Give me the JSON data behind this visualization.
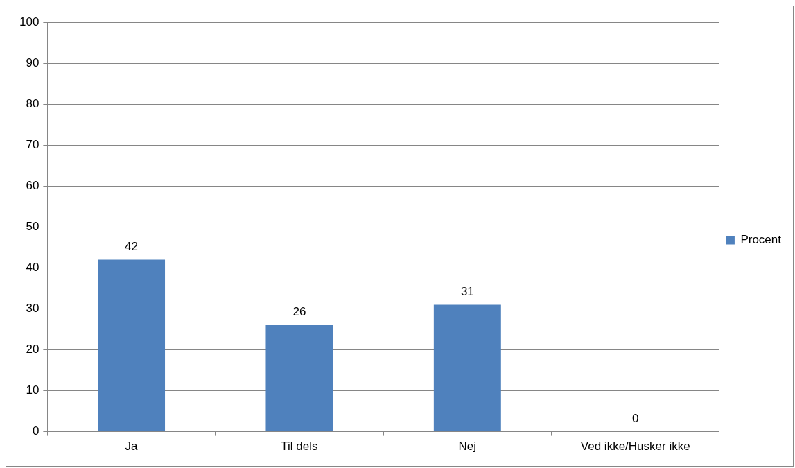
{
  "chart_data": {
    "type": "bar",
    "categories": [
      "Ja",
      "Til dels",
      "Nej",
      "Ved ikke/Husker ikke"
    ],
    "series": [
      {
        "name": "Procent",
        "color": "#4f81bd",
        "values": [
          42,
          26,
          31,
          0
        ]
      }
    ],
    "ylim": [
      0,
      100
    ],
    "yticks": [
      0,
      10,
      20,
      30,
      40,
      50,
      60,
      70,
      80,
      90,
      100
    ],
    "grid": "y",
    "legend": "right",
    "data_labels": true
  }
}
